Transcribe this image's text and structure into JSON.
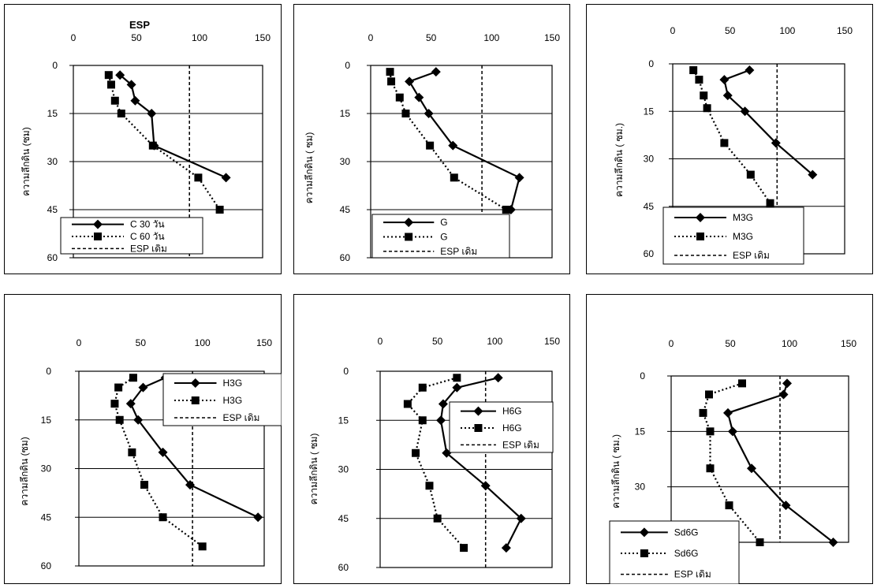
{
  "chart_data": [
    {
      "type": "line",
      "title": "ESP",
      "ylabel": "ความลึกดิน (ซม)",
      "x_ticks": [
        "0",
        "50",
        "100",
        "150"
      ],
      "y_ticks": [
        "0",
        "15",
        "30",
        "45",
        "60"
      ],
      "xlim": [
        0,
        150
      ],
      "ylim": [
        0,
        60
      ],
      "y_inverted": true,
      "grid": "horizontal",
      "legend_position": "bottom-left",
      "series": [
        {
          "name": "C 30 วัน",
          "style": "solid-diamond",
          "points": [
            [
              37,
              3
            ],
            [
              46,
              6
            ],
            [
              49,
              11
            ],
            [
              62,
              15
            ],
            [
              64,
              25
            ],
            [
              121,
              35
            ]
          ]
        },
        {
          "name": "C 60 วัน",
          "style": "dotted-square",
          "points": [
            [
              28,
              3
            ],
            [
              30,
              6
            ],
            [
              33,
              11
            ],
            [
              38,
              15
            ],
            [
              63,
              25
            ],
            [
              99,
              35
            ],
            [
              116,
              45
            ]
          ]
        },
        {
          "name": "ESP เดิม",
          "style": "dashed",
          "points": [
            [
              92,
              0
            ],
            [
              92,
              60
            ]
          ]
        }
      ]
    },
    {
      "type": "line",
      "title": "",
      "ylabel": "ความลึกดิน ( ซม)",
      "x_ticks": [
        "0",
        "50",
        "100",
        "150"
      ],
      "y_ticks": [
        "0",
        "15",
        "30",
        "45",
        "60"
      ],
      "xlim": [
        0,
        150
      ],
      "ylim": [
        0,
        60
      ],
      "y_inverted": true,
      "grid": "horizontal",
      "legend_position": "bottom-left",
      "series": [
        {
          "name": "G",
          "style": "solid-diamond",
          "points": [
            [
              54,
              2
            ],
            [
              32,
              5
            ],
            [
              40,
              10
            ],
            [
              48,
              15
            ],
            [
              68,
              25
            ],
            [
              123,
              35
            ],
            [
              116,
              45
            ]
          ]
        },
        {
          "name": "G",
          "style": "dotted-square",
          "points": [
            [
              16,
              2
            ],
            [
              17,
              5
            ],
            [
              24,
              10
            ],
            [
              29,
              15
            ],
            [
              49,
              25
            ],
            [
              69,
              35
            ],
            [
              112,
              45
            ]
          ]
        },
        {
          "name": "ESP เดิม",
          "style": "dashed",
          "points": [
            [
              92,
              0
            ],
            [
              92,
              60
            ]
          ]
        }
      ]
    },
    {
      "type": "line",
      "title": "",
      "ylabel": "ความลึกดิน ( ซม.)",
      "x_ticks": [
        "0",
        "50",
        "100",
        "150"
      ],
      "y_ticks": [
        "0",
        "15",
        "30",
        "45",
        "60"
      ],
      "xlim": [
        0,
        150
      ],
      "ylim": [
        0,
        60
      ],
      "y_inverted": true,
      "grid": "horizontal",
      "legend_position": "bottom-left",
      "series": [
        {
          "name": "M3G",
          "style": "solid-diamond",
          "points": [
            [
              67,
              2
            ],
            [
              45,
              5
            ],
            [
              48,
              10
            ],
            [
              63,
              15
            ],
            [
              90,
              25
            ],
            [
              122,
              35
            ]
          ]
        },
        {
          "name": "M3G",
          "style": "dotted-square",
          "points": [
            [
              18,
              2
            ],
            [
              23,
              5
            ],
            [
              27,
              10
            ],
            [
              30,
              14
            ],
            [
              45,
              25
            ],
            [
              68,
              35
            ],
            [
              85,
              44
            ]
          ]
        },
        {
          "name": "ESP เดิม",
          "style": "dashed",
          "points": [
            [
              91,
              0
            ],
            [
              91,
              60
            ]
          ]
        }
      ]
    },
    {
      "type": "line",
      "title": "",
      "ylabel": "ความลึกดิน (ซม)",
      "x_ticks": [
        "0",
        "50",
        "100",
        "150"
      ],
      "y_ticks": [
        "0",
        "15",
        "30",
        "45",
        "60"
      ],
      "xlim": [
        0,
        150
      ],
      "ylim": [
        0,
        60
      ],
      "y_inverted": true,
      "grid": "horizontal",
      "legend_position": "top-right",
      "series": [
        {
          "name": "H3G",
          "style": "solid-diamond",
          "points": [
            [
              70,
              2
            ],
            [
              52,
              5
            ],
            [
              42,
              10
            ],
            [
              48,
              15
            ],
            [
              68,
              25
            ],
            [
              90,
              35
            ],
            [
              145,
              45
            ]
          ]
        },
        {
          "name": "H3G",
          "style": "dotted-square",
          "points": [
            [
              44,
              2
            ],
            [
              32,
              5
            ],
            [
              29,
              10
            ],
            [
              33,
              15
            ],
            [
              43,
              25
            ],
            [
              53,
              35
            ],
            [
              68,
              45
            ],
            [
              100,
              54
            ]
          ]
        },
        {
          "name": "ESP เดิม",
          "style": "dashed",
          "points": [
            [
              92,
              0
            ],
            [
              92,
              60
            ]
          ]
        }
      ]
    },
    {
      "type": "line",
      "title": "",
      "ylabel": "ความลึกดิน ( ซม)",
      "x_ticks": [
        "0",
        "50",
        "100",
        "150"
      ],
      "y_ticks": [
        "0",
        "15",
        "30",
        "45",
        "60"
      ],
      "xlim": [
        0,
        150
      ],
      "ylim": [
        0,
        60
      ],
      "y_inverted": true,
      "grid": "horizontal",
      "legend_position": "top-right",
      "series": [
        {
          "name": "H6G",
          "style": "solid-diamond",
          "points": [
            [
              103,
              2
            ],
            [
              67,
              5
            ],
            [
              55,
              10
            ],
            [
              53,
              15
            ],
            [
              58,
              25
            ],
            [
              92,
              35
            ],
            [
              123,
              45
            ],
            [
              110,
              54
            ]
          ]
        },
        {
          "name": "H6G",
          "style": "dotted-square",
          "points": [
            [
              67,
              2
            ],
            [
              37,
              5
            ],
            [
              24,
              10
            ],
            [
              37,
              15
            ],
            [
              31,
              25
            ],
            [
              43,
              35
            ],
            [
              50,
              45
            ],
            [
              73,
              54
            ]
          ]
        },
        {
          "name": "ESP เดิม",
          "style": "dashed",
          "points": [
            [
              92,
              0
            ],
            [
              92,
              60
            ]
          ]
        }
      ]
    },
    {
      "type": "line",
      "title": "",
      "ylabel": "ความลึกดิน ( ซม.)",
      "x_ticks": [
        "0",
        "50",
        "100",
        "150"
      ],
      "y_ticks": [
        "0",
        "15",
        "30",
        "45"
      ],
      "xlim": [
        0,
        150
      ],
      "ylim": [
        0,
        45
      ],
      "y_inverted": true,
      "grid": "horizontal",
      "legend_position": "bottom-left",
      "series": [
        {
          "name": "Sd6G",
          "style": "solid-diamond",
          "points": [
            [
              98,
              2
            ],
            [
              95,
              5
            ],
            [
              48,
              10
            ],
            [
              52,
              15
            ],
            [
              68,
              25
            ],
            [
              97,
              35
            ],
            [
              137,
              45
            ]
          ]
        },
        {
          "name": "Sd6G",
          "style": "dotted-square",
          "points": [
            [
              60,
              2
            ],
            [
              32,
              5
            ],
            [
              27,
              10
            ],
            [
              33,
              15
            ],
            [
              33,
              25
            ],
            [
              49,
              35
            ],
            [
              75,
              45
            ]
          ]
        },
        {
          "name": "ESP เดิม",
          "style": "dashed",
          "points": [
            [
              92,
              0
            ],
            [
              92,
              60
            ]
          ]
        }
      ]
    }
  ]
}
